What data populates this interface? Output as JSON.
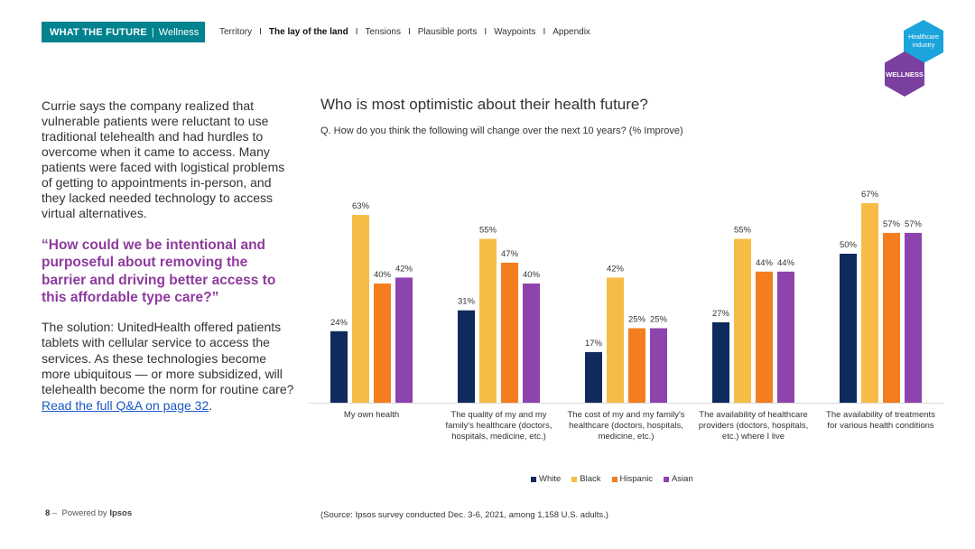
{
  "header": {
    "brand_title": "WHAT THE FUTURE",
    "brand_sep": "|",
    "brand_sub": "Wellness",
    "nav": [
      {
        "label": "Territory",
        "active": false
      },
      {
        "label": "The lay of the land",
        "active": true
      },
      {
        "label": "Tensions",
        "active": false
      },
      {
        "label": "Plausible ports",
        "active": false
      },
      {
        "label": "Waypoints",
        "active": false
      },
      {
        "label": "Appendix",
        "active": false
      }
    ],
    "nav_divider": "I",
    "badge_top": "Healthcare industry",
    "badge_bottom": "WELLNESS"
  },
  "left": {
    "para1": "Currie says the company realized that vulnerable patients were reluctant to use traditional telehealth and had hurdles to overcome when it came to access. Many patients were faced with logistical problems of getting to appointments in-person, and they lacked needed technology to access virtual alternatives.",
    "quote": "“How could we be intentional and purposeful about removing the barrier and driving better access to this affordable type care?”",
    "para2": "The solution: UnitedHealth offered patients tablets with cellular service to access the services. As these technologies become more ubiquitous — or more subsidized, will telehealth become the norm for routine care?",
    "link": "Read the full Q&A on page 32",
    "para2_end": "."
  },
  "chart_data": {
    "type": "bar",
    "title": "Who is most optimistic about their health future?",
    "subtitle": "Q. How do you think the following will change over the next 10 years? (% Improve)",
    "categories": [
      "My own health",
      "The quality of my and my family's healthcare (doctors, hospitals, medicine, etc.)",
      "The cost of my and my family's healthcare (doctors, hospitals, medicine, etc.)",
      "The availability of healthcare providers (doctors, hospitals, etc.) where I live",
      "The availability of treatments for various health conditions"
    ],
    "category_lines": [
      [
        "My own health"
      ],
      [
        "The quality of my and my",
        "family's healthcare (doctors,",
        "hospitals, medicine, etc.)"
      ],
      [
        "The cost of my and my family's",
        "healthcare (doctors, hospitals,",
        "medicine, etc.)"
      ],
      [
        "The availability of healthcare",
        "providers (doctors, hospitals,",
        "etc.) where I live"
      ],
      [
        "The availability of treatments",
        "for various health conditions"
      ]
    ],
    "series": [
      {
        "name": "White",
        "color": "#0f2a5c",
        "values": [
          24,
          31,
          17,
          27,
          50
        ]
      },
      {
        "name": "Black",
        "color": "#f6bc45",
        "values": [
          63,
          55,
          42,
          55,
          67
        ]
      },
      {
        "name": "Hispanic",
        "color": "#f47d20",
        "values": [
          40,
          47,
          25,
          44,
          57
        ]
      },
      {
        "name": "Asian",
        "color": "#8e44ad",
        "values": [
          42,
          40,
          25,
          44,
          57
        ]
      }
    ],
    "value_suffix": "%",
    "ylim": [
      0,
      70
    ],
    "legend_position": "bottom",
    "grid": false
  },
  "source": "(Source: Ipsos survey conducted Dec. 3-6, 2021, among 1,158 U.S. adults.)",
  "footer": {
    "page": "8",
    "dash": "–",
    "powered": "Powered by",
    "company": "Ipsos"
  }
}
